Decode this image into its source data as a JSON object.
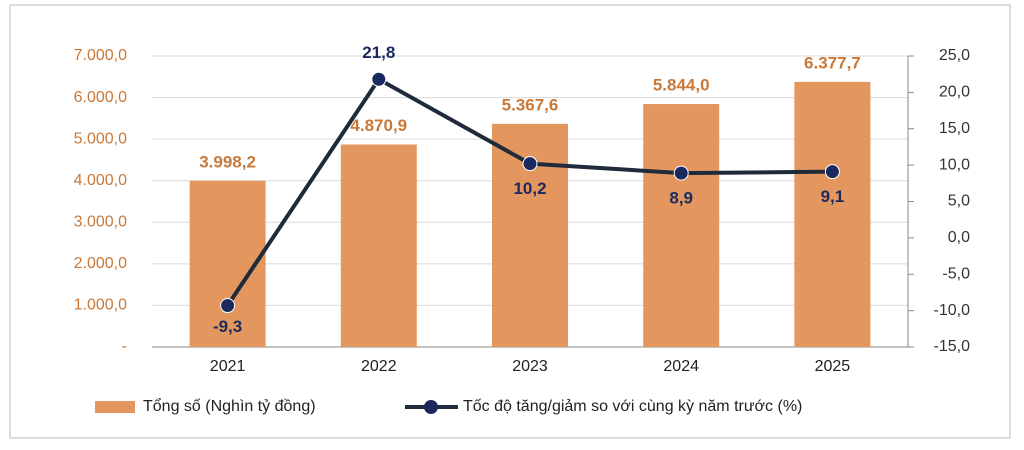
{
  "chart_data": {
    "type": "bar",
    "categories": [
      "2021",
      "2022",
      "2023",
      "2024",
      "2025"
    ],
    "series": [
      {
        "name": "Tổng số (Nghìn tỷ đồng)",
        "type": "bar",
        "color": "#e3975f",
        "values": [
          3998.2,
          4870.9,
          5367.6,
          5844.0,
          6377.7
        ],
        "value_labels": [
          "3.998,2",
          "4.870,9",
          "5.367,6",
          "5.844,0",
          "6.377,7"
        ]
      },
      {
        "name": "Tốc độ tăng/giảm so với cùng kỳ năm trước (%)",
        "type": "line",
        "axis": "y2",
        "color": "#1f2a3a",
        "marker_color": "#1a2a5e",
        "values": [
          -9.3,
          21.8,
          10.2,
          8.9,
          9.1
        ],
        "value_labels": [
          "-9,3",
          "21,8",
          "10,2",
          "8,9",
          "9,1"
        ]
      }
    ],
    "ylim": [
      0,
      7000
    ],
    "yticks": [
      {
        "value": 0,
        "label": "-"
      },
      {
        "value": 1000,
        "label": "1.000,0"
      },
      {
        "value": 2000,
        "label": "2.000,0"
      },
      {
        "value": 3000,
        "label": "3.000,0"
      },
      {
        "value": 4000,
        "label": "4.000,0"
      },
      {
        "value": 5000,
        "label": "5.000,0"
      },
      {
        "value": 6000,
        "label": "6.000,0"
      },
      {
        "value": 7000,
        "label": "7.000,0"
      }
    ],
    "y2lim": [
      -15,
      25
    ],
    "y2ticks": [
      {
        "value": -15,
        "label": "-15,0"
      },
      {
        "value": -10,
        "label": "-10,0"
      },
      {
        "value": -5,
        "label": "-5,0"
      },
      {
        "value": 0,
        "label": "0,0"
      },
      {
        "value": 5,
        "label": "5,0"
      },
      {
        "value": 10,
        "label": "10,0"
      },
      {
        "value": 15,
        "label": "15,0"
      },
      {
        "value": 20,
        "label": "20,0"
      },
      {
        "value": 25,
        "label": "25,0"
      }
    ],
    "grid": true,
    "legend": "bottom"
  }
}
